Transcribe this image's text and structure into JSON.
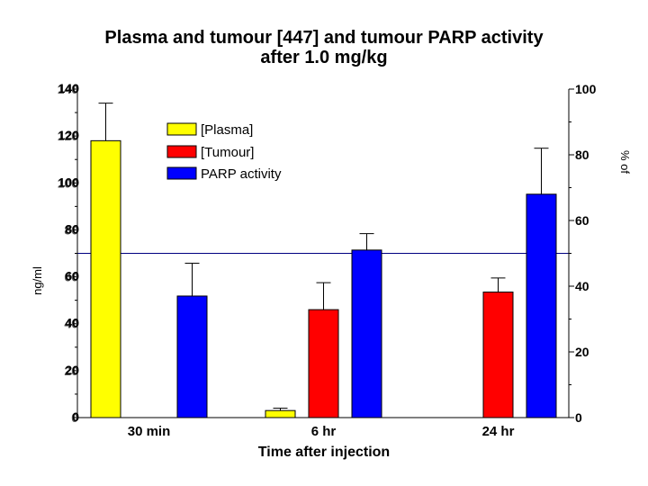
{
  "chart_data": {
    "type": "bar",
    "title_lines": [
      "Plasma and tumour [447] and tumour PARP activity",
      "after 1.0 mg/kg"
    ],
    "xlabel": "Time after injection",
    "categories": [
      "30 min",
      "6 hr",
      "24 hr"
    ],
    "series": [
      {
        "name": "[Plasma]",
        "axis": "left",
        "color": "#ffff00",
        "values": [
          118,
          3,
          null
        ],
        "errors": [
          16,
          1,
          null
        ]
      },
      {
        "name": "[Tumour]",
        "axis": "left",
        "color": "#ff0000",
        "values": [
          null,
          46,
          53.5
        ],
        "errors": [
          null,
          11.5,
          6
        ]
      },
      {
        "name": "PARP activity",
        "axis": "right",
        "color": "#0000ff",
        "values": [
          37,
          51,
          68
        ],
        "errors": [
          10,
          5,
          14
        ]
      }
    ],
    "left_axis": {
      "ylim": [
        0,
        140
      ],
      "ticks": [
        0,
        20,
        40,
        60,
        80,
        100,
        120,
        140
      ],
      "label_fragment": "ng/ml"
    },
    "right_axis": {
      "ylim": [
        0,
        100
      ],
      "ticks": [
        0,
        20,
        40,
        60,
        80,
        100
      ],
      "label_fragment": "% of"
    },
    "reference_line": {
      "axis": "right",
      "value": 50,
      "color": "#000080"
    }
  }
}
